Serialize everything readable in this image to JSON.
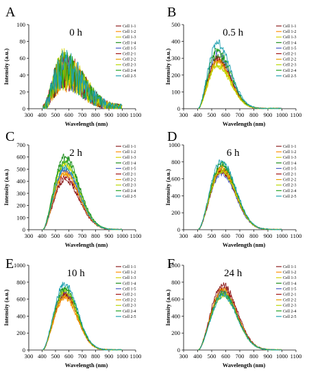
{
  "figure_panels": [
    "A",
    "B",
    "C",
    "D",
    "E",
    "F"
  ],
  "chart_data": [
    {
      "type": "line",
      "panel": "A",
      "annotation": "0 h",
      "xlabel": "Wavelength (nm)",
      "ylabel": "Intensity (a.u.)",
      "xlim": [
        300,
        1100
      ],
      "ylim": [
        0,
        100
      ],
      "xticks": [
        300,
        400,
        500,
        600,
        700,
        800,
        900,
        1000,
        1100
      ],
      "yticks": [
        0,
        20,
        40,
        60,
        80,
        100
      ],
      "grid": false,
      "legend_position": "top-right",
      "signal_shape": {
        "start": 405,
        "end": 1000,
        "peak_x": 560,
        "peak_y": 45,
        "width": 220,
        "noise": 20,
        "baseline": 0
      },
      "series": [
        {
          "name": "Cell 1-1",
          "color": "#8b1a1a",
          "scale": 1.0
        },
        {
          "name": "Cell 1-2",
          "color": "#ff8c00",
          "scale": 0.95
        },
        {
          "name": "Cell 1-3",
          "color": "#d4d400",
          "scale": 1.05
        },
        {
          "name": "Cell 1-4",
          "color": "#1a8c1a",
          "scale": 1.0
        },
        {
          "name": "Cell 1-5",
          "color": "#4b5fc8",
          "scale": 0.98
        },
        {
          "name": "Cell 2-1",
          "color": "#a01010",
          "scale": 1.02
        },
        {
          "name": "Cell 2-2",
          "color": "#e8a000",
          "scale": 0.97
        },
        {
          "name": "Cell 2-3",
          "color": "#b8d800",
          "scale": 1.03
        },
        {
          "name": "Cell 2-4",
          "color": "#20a020",
          "scale": 1.0
        },
        {
          "name": "Cell 2-5",
          "color": "#1fa0b0",
          "scale": 1.05
        }
      ]
    },
    {
      "type": "line",
      "panel": "B",
      "annotation": "0.5 h",
      "xlabel": "Wavelength (nm)",
      "ylabel": "Intensity (a.u.)",
      "xlim": [
        300,
        1100
      ],
      "ylim": [
        0,
        500
      ],
      "xticks": [
        300,
        400,
        500,
        600,
        700,
        800,
        900,
        1000,
        1100
      ],
      "yticks": [
        0,
        100,
        200,
        300,
        400,
        500
      ],
      "grid": false,
      "legend_position": "top-right",
      "signal_shape": {
        "start": 405,
        "end": 1000,
        "peak_x": 540,
        "peak_y": 300,
        "width": 140,
        "noise": 18,
        "baseline": 0
      },
      "series": [
        {
          "name": "Cell 1-1",
          "color": "#8b1a1a",
          "scale": 1.0
        },
        {
          "name": "Cell 1-2",
          "color": "#ff8c00",
          "scale": 0.92
        },
        {
          "name": "Cell 1-3",
          "color": "#d4d400",
          "scale": 0.85
        },
        {
          "name": "Cell 1-4",
          "color": "#1a8c1a",
          "scale": 1.05
        },
        {
          "name": "Cell 1-5",
          "color": "#4b5fc8",
          "scale": 1.1
        },
        {
          "name": "Cell 2-1",
          "color": "#a01010",
          "scale": 0.97
        },
        {
          "name": "Cell 2-2",
          "color": "#e8a000",
          "scale": 0.95
        },
        {
          "name": "Cell 2-3",
          "color": "#b8d800",
          "scale": 0.88
        },
        {
          "name": "Cell 2-4",
          "color": "#20a020",
          "scale": 1.15
        },
        {
          "name": "Cell 2-5",
          "color": "#1fa0b0",
          "scale": 1.3
        }
      ]
    },
    {
      "type": "line",
      "panel": "C",
      "annotation": "2 h",
      "xlabel": "Wavelength (nm)",
      "ylabel": "Intensity (a.u.)",
      "xlim": [
        300,
        1100
      ],
      "ylim": [
        0,
        700
      ],
      "xticks": [
        300,
        400,
        500,
        600,
        700,
        800,
        900,
        1000,
        1100
      ],
      "yticks": [
        0,
        100,
        200,
        300,
        400,
        500,
        600,
        700
      ],
      "grid": false,
      "legend_position": "top-right",
      "signal_shape": {
        "start": 405,
        "end": 1000,
        "peak_x": 570,
        "peak_y": 500,
        "width": 160,
        "noise": 22,
        "baseline": 0
      },
      "series": [
        {
          "name": "Cell 1-1",
          "color": "#8b1a1a",
          "scale": 0.82
        },
        {
          "name": "Cell 1-2",
          "color": "#ff8c00",
          "scale": 0.95
        },
        {
          "name": "Cell 1-3",
          "color": "#d4d400",
          "scale": 1.05
        },
        {
          "name": "Cell 1-4",
          "color": "#1a8c1a",
          "scale": 1.2
        },
        {
          "name": "Cell 1-5",
          "color": "#4b5fc8",
          "scale": 1.0
        },
        {
          "name": "Cell 2-1",
          "color": "#a01010",
          "scale": 0.88
        },
        {
          "name": "Cell 2-2",
          "color": "#e8a000",
          "scale": 0.92
        },
        {
          "name": "Cell 2-3",
          "color": "#b8d800",
          "scale": 1.1
        },
        {
          "name": "Cell 2-4",
          "color": "#20a020",
          "scale": 1.15
        },
        {
          "name": "Cell 2-5",
          "color": "#1fa0b0",
          "scale": 1.02
        }
      ]
    },
    {
      "type": "line",
      "panel": "D",
      "annotation": "6 h",
      "xlabel": "Wavelength (nm)",
      "ylabel": "Intensity (a.u.)",
      "xlim": [
        300,
        1100
      ],
      "ylim": [
        0,
        1000
      ],
      "xticks": [
        300,
        400,
        500,
        600,
        700,
        800,
        900,
        1000,
        1100
      ],
      "yticks": [
        0,
        200,
        400,
        600,
        800,
        1000
      ],
      "grid": false,
      "legend_position": "top-right",
      "signal_shape": {
        "start": 405,
        "end": 1000,
        "peak_x": 570,
        "peak_y": 720,
        "width": 150,
        "noise": 30,
        "baseline": 0
      },
      "series": [
        {
          "name": "Cell 1-1",
          "color": "#8b1a1a",
          "scale": 0.95
        },
        {
          "name": "Cell 1-2",
          "color": "#ff8c00",
          "scale": 1.0
        },
        {
          "name": "Cell 1-3",
          "color": "#d4d400",
          "scale": 0.98
        },
        {
          "name": "Cell 1-4",
          "color": "#1a8c1a",
          "scale": 1.05
        },
        {
          "name": "Cell 1-5",
          "color": "#4b5fc8",
          "scale": 0.92
        },
        {
          "name": "Cell 2-1",
          "color": "#a01010",
          "scale": 0.96
        },
        {
          "name": "Cell 2-2",
          "color": "#e8a000",
          "scale": 1.02
        },
        {
          "name": "Cell 2-3",
          "color": "#b8d800",
          "scale": 0.97
        },
        {
          "name": "Cell 2-4",
          "color": "#20a020",
          "scale": 1.08
        },
        {
          "name": "Cell 2-5",
          "color": "#1fa0b0",
          "scale": 1.12
        }
      ]
    },
    {
      "type": "line",
      "panel": "E",
      "annotation": "10 h",
      "xlabel": "Wavelength (nm)",
      "ylabel": "Intensity (a.u.)",
      "xlim": [
        300,
        1100
      ],
      "ylim": [
        0,
        1000
      ],
      "xticks": [
        300,
        400,
        500,
        600,
        700,
        800,
        900,
        1000,
        1100
      ],
      "yticks": [
        0,
        200,
        400,
        600,
        800,
        1000
      ],
      "grid": false,
      "legend_position": "top-right",
      "signal_shape": {
        "start": 405,
        "end": 1000,
        "peak_x": 570,
        "peak_y": 680,
        "width": 140,
        "noise": 30,
        "baseline": 0
      },
      "series": [
        {
          "name": "Cell 1-1",
          "color": "#8b1a1a",
          "scale": 0.95
        },
        {
          "name": "Cell 1-2",
          "color": "#ff8c00",
          "scale": 0.9
        },
        {
          "name": "Cell 1-3",
          "color": "#d4d400",
          "scale": 0.98
        },
        {
          "name": "Cell 1-4",
          "color": "#1a8c1a",
          "scale": 1.05
        },
        {
          "name": "Cell 1-5",
          "color": "#4b5fc8",
          "scale": 1.0
        },
        {
          "name": "Cell 2-1",
          "color": "#a01010",
          "scale": 0.97
        },
        {
          "name": "Cell 2-2",
          "color": "#e8a000",
          "scale": 0.93
        },
        {
          "name": "Cell 2-3",
          "color": "#b8d800",
          "scale": 1.02
        },
        {
          "name": "Cell 2-4",
          "color": "#20a020",
          "scale": 1.08
        },
        {
          "name": "Cell 2-5",
          "color": "#1fa0b0",
          "scale": 1.15
        }
      ]
    },
    {
      "type": "line",
      "panel": "F",
      "annotation": "24 h",
      "xlabel": "Wavelength (nm)",
      "ylabel": "Intensity (a.u.)",
      "xlim": [
        300,
        1100
      ],
      "ylim": [
        0,
        1000
      ],
      "xticks": [
        300,
        400,
        500,
        600,
        700,
        800,
        900,
        1000,
        1100
      ],
      "yticks": [
        0,
        200,
        400,
        600,
        800,
        1000
      ],
      "grid": false,
      "legend_position": "top-right",
      "signal_shape": {
        "start": 405,
        "end": 1000,
        "peak_x": 580,
        "peak_y": 690,
        "width": 150,
        "noise": 30,
        "baseline": 0
      },
      "series": [
        {
          "name": "Cell 1-1",
          "color": "#8b1a1a",
          "scale": 1.12
        },
        {
          "name": "Cell 1-2",
          "color": "#ff8c00",
          "scale": 1.0
        },
        {
          "name": "Cell 1-3",
          "color": "#d4d400",
          "scale": 0.95
        },
        {
          "name": "Cell 1-4",
          "color": "#1a8c1a",
          "scale": 0.98
        },
        {
          "name": "Cell 1-5",
          "color": "#4b5fc8",
          "scale": 1.0
        },
        {
          "name": "Cell 2-1",
          "color": "#a01010",
          "scale": 1.05
        },
        {
          "name": "Cell 2-2",
          "color": "#e8a000",
          "scale": 1.02
        },
        {
          "name": "Cell 2-3",
          "color": "#b8d800",
          "scale": 0.94
        },
        {
          "name": "Cell 2-4",
          "color": "#20a020",
          "scale": 0.97
        },
        {
          "name": "Cell 2-5",
          "color": "#1fa0b0",
          "scale": 0.93
        }
      ]
    }
  ]
}
